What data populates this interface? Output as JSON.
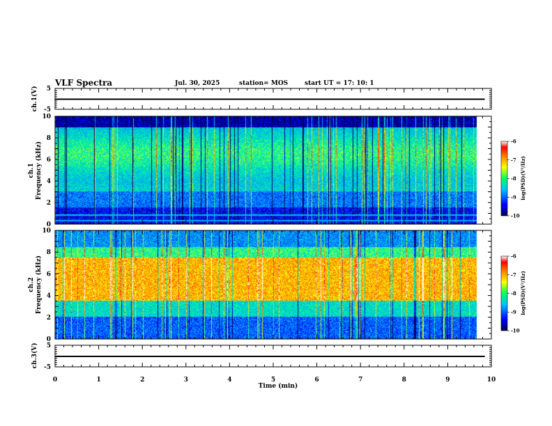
{
  "header": {
    "title": "VLF Spectra",
    "date": "Jul. 30, 2025",
    "station": "station= MOS",
    "start": "start UT = 17: 10: 1"
  },
  "chart_data": [
    {
      "type": "line",
      "name": "ch.1 voltage",
      "ylabel": "ch.1(V)",
      "ylim": [
        -5,
        5
      ],
      "yticks": [
        5,
        -5
      ],
      "x": [
        0,
        9.85
      ],
      "values": [
        0,
        0
      ]
    },
    {
      "type": "heatmap",
      "name": "ch.1 spectrogram",
      "ylabel": "ch.1 Frequency (kHz)",
      "ylabel_line1": "ch.1",
      "ylabel_line2": "Frequency (kHz)",
      "ylim": [
        0,
        10
      ],
      "yticks": [
        0,
        2,
        4,
        6,
        8,
        10
      ],
      "colorbar": {
        "label": "log(PSD)(V²/Hz)",
        "range": [
          -10,
          -6
        ],
        "ticks": [
          -6,
          -7,
          -8,
          -9,
          -10
        ]
      }
    },
    {
      "type": "heatmap",
      "name": "ch.2 spectrogram",
      "ylabel": "ch.2 Frequency (kHz)",
      "ylabel_line1": "ch.2",
      "ylabel_line2": "Frequency (kHz)",
      "ylim": [
        0,
        10
      ],
      "yticks": [
        0,
        2,
        4,
        6,
        8,
        10
      ],
      "colorbar": {
        "label": "log(PSD)(V²/Hz)",
        "range": [
          -10,
          -6
        ],
        "ticks": [
          -6,
          -7,
          -8,
          -9,
          -10
        ]
      }
    },
    {
      "type": "line",
      "name": "ch.3 voltage",
      "ylabel": "ch.3(V)",
      "ylim": [
        -5,
        5
      ],
      "yticks": [
        5,
        -5
      ],
      "x": [
        0,
        9.85
      ],
      "values": [
        0,
        0
      ]
    }
  ],
  "xaxis": {
    "label": "Time (min)",
    "range": [
      0,
      10
    ],
    "ticks": [
      0,
      1,
      2,
      3,
      4,
      5,
      6,
      7,
      8,
      9,
      10
    ]
  },
  "colors": {
    "cmap": [
      "#000060",
      "#0000ff",
      "#00aaff",
      "#00ff90",
      "#ffff00",
      "#ff8000",
      "#ff0000",
      "#ffffff"
    ]
  }
}
